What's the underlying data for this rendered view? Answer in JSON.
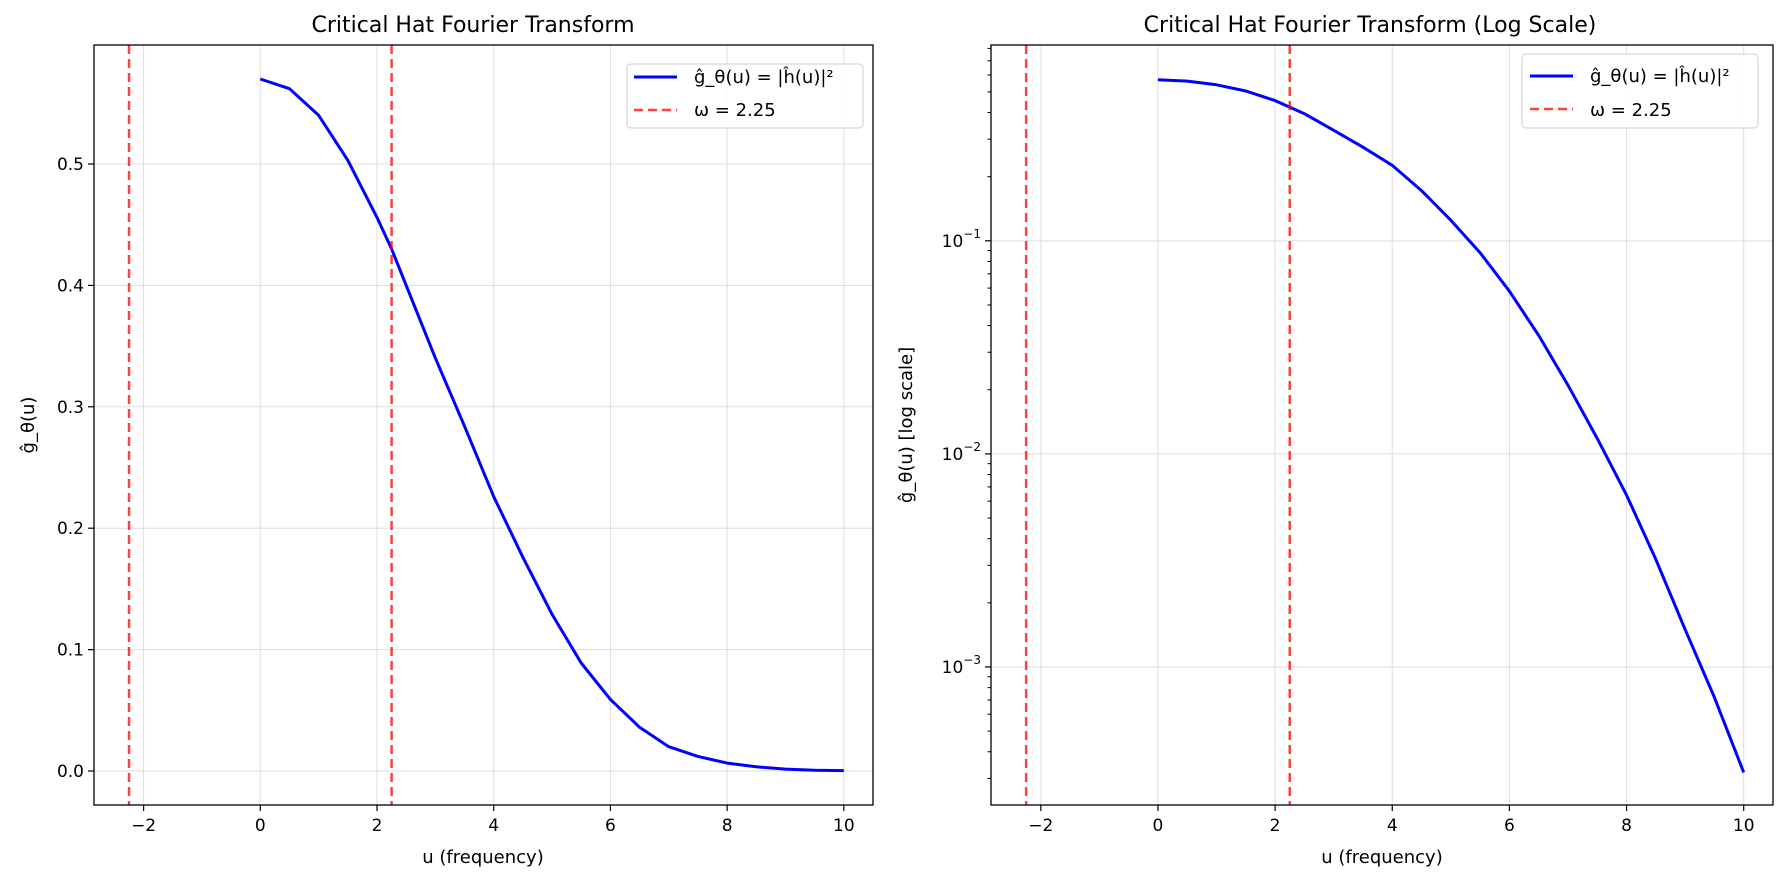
{
  "chart_data": [
    {
      "type": "line",
      "title": "Critical Hat Fourier Transform",
      "xlabel": "u (frequency)",
      "ylabel": "ĝ_θ(u)",
      "xlim": [
        -2.85,
        10.5
      ],
      "ylim": [
        -0.028,
        0.598
      ],
      "yscale": "linear",
      "grid": true,
      "legend_position": "top-right",
      "xticks": [
        -2,
        0,
        2,
        4,
        6,
        8,
        10
      ],
      "xtick_labels": [
        "−2",
        "0",
        "2",
        "4",
        "6",
        "8",
        "10"
      ],
      "yticks": [
        0.0,
        0.1,
        0.2,
        0.3,
        0.4,
        0.5
      ],
      "ytick_labels": [
        "0.0",
        "0.1",
        "0.2",
        "0.3",
        "0.4",
        "0.5"
      ],
      "series": [
        {
          "name": "ĝ_θ(u) = |ĥ(u)|²",
          "color": "#0000ff",
          "style": "solid",
          "x": [
            0,
            0.5,
            1,
            1.5,
            2,
            2.25,
            2.5,
            3,
            3.5,
            4,
            4.5,
            5,
            5.5,
            6,
            6.5,
            7,
            7.5,
            8,
            8.5,
            9,
            9.5,
            10
          ],
          "y": [
            0.57,
            0.562,
            0.54,
            0.503,
            0.456,
            0.43,
            0.4,
            0.34,
            0.284,
            0.226,
            0.176,
            0.129,
            0.089,
            0.059,
            0.036,
            0.02,
            0.012,
            0.0065,
            0.0035,
            0.0016,
            0.0007,
            0.0003
          ]
        }
      ],
      "vlines": [
        {
          "name": "ω = 2.25",
          "x": [
            -2.25,
            2.25
          ],
          "color": "#ff0000",
          "style": "dashed"
        }
      ]
    },
    {
      "type": "line",
      "title": "Critical Hat Fourier Transform (Log Scale)",
      "xlabel": "u (frequency)",
      "ylabel": "ĝ_θ(u) [log scale]",
      "xlim": [
        -2.85,
        10.5
      ],
      "ylim": [
        0.000225,
        0.83
      ],
      "yscale": "log",
      "grid": true,
      "legend_position": "top-right",
      "xticks": [
        -2,
        0,
        2,
        4,
        6,
        8,
        10
      ],
      "xtick_labels": [
        "−2",
        "0",
        "2",
        "4",
        "6",
        "8",
        "10"
      ],
      "yticks": [
        0.001,
        0.01,
        0.1
      ],
      "ytick_labels": [
        {
          "base": "10",
          "exp": "−3"
        },
        {
          "base": "10",
          "exp": "−2"
        },
        {
          "base": "10",
          "exp": "−1"
        }
      ],
      "series": [
        {
          "name": "ĝ_θ(u) = |ĥ(u)|²",
          "color": "#0000ff",
          "style": "solid",
          "x": [
            0,
            0.5,
            1,
            1.5,
            2,
            2.5,
            3,
            3.5,
            4,
            4.5,
            5,
            5.5,
            6,
            6.5,
            7,
            7.5,
            8,
            8.5,
            9,
            9.5,
            10
          ],
          "y": [
            0.57,
            0.562,
            0.54,
            0.505,
            0.455,
            0.395,
            0.33,
            0.275,
            0.226,
            0.172,
            0.125,
            0.088,
            0.058,
            0.036,
            0.021,
            0.0118,
            0.0064,
            0.0032,
            0.0015,
            0.00072,
            0.00032
          ]
        }
      ],
      "vlines": [
        {
          "name": "ω = 2.25",
          "x": [
            -2.25,
            2.25
          ],
          "color": "#ff0000",
          "style": "dashed"
        }
      ]
    }
  ]
}
